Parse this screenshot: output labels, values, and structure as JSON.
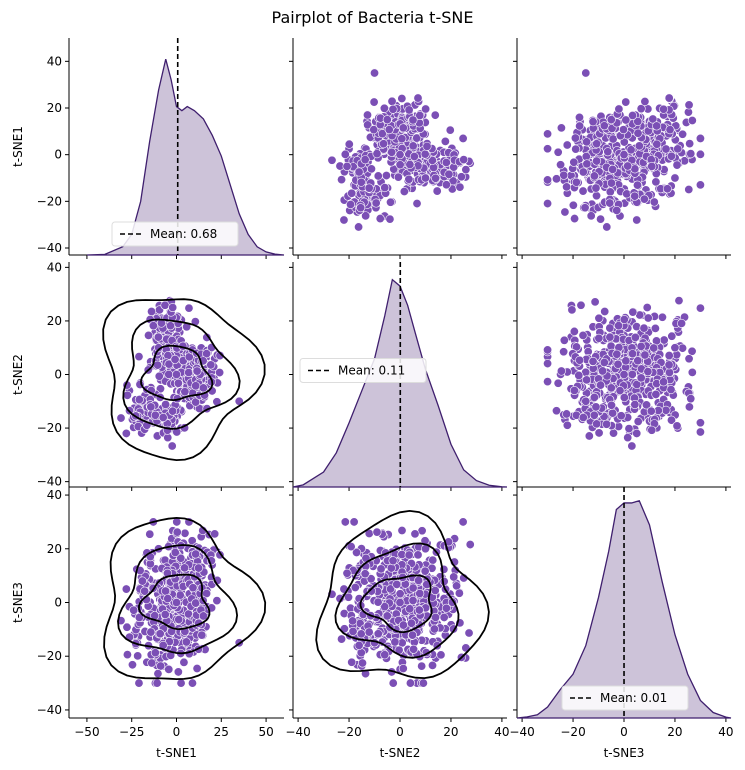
{
  "chart_data": {
    "type": "pairplot",
    "title": "Pairplot of Bacteria t-SNE",
    "variables": [
      "t-SNE1",
      "t-SNE2",
      "t-SNE3"
    ],
    "point_color": "#7b4fb5",
    "kde_fill_color": "#cdc3d9",
    "kde_line_color": "#3f1f6e",
    "contour_color": "#000000",
    "axes": {
      "t-SNE1": {
        "lim": [
          -60,
          60
        ],
        "ticks": [
          -50,
          -25,
          0,
          25,
          50
        ]
      },
      "t-SNE2": {
        "lim": [
          -42,
          42
        ],
        "ticks": [
          -40,
          -20,
          0,
          20,
          40
        ]
      },
      "t-SNE3": {
        "lim": [
          -42,
          42
        ],
        "ticks": [
          -40,
          -20,
          0,
          20,
          40
        ]
      }
    },
    "y_axis_ranges": {
      "t-SNE1": {
        "lim": [
          -43,
          50
        ],
        "ticks": [
          -40,
          -20,
          0,
          20,
          40
        ]
      },
      "t-SNE2": {
        "lim": [
          -42,
          42
        ],
        "ticks": [
          -40,
          -20,
          0,
          20,
          40
        ]
      },
      "t-SNE3": {
        "lim": [
          -43,
          43
        ],
        "ticks": [
          -40,
          -20,
          0,
          20,
          40
        ]
      }
    },
    "diagonal": [
      {
        "variable": "t-SNE1",
        "mean": 0.68,
        "legend": "Mean: 0.68",
        "legend_loc": "lower center",
        "kde_x": [
          -50,
          -40,
          -30,
          -25,
          -20,
          -15,
          -10,
          -6,
          -3,
          0,
          3,
          6,
          10,
          15,
          20,
          25,
          30,
          35,
          40,
          45,
          50,
          55,
          60
        ],
        "kde_y": [
          0.0,
          0.003,
          0.04,
          0.1,
          0.26,
          0.55,
          0.8,
          0.95,
          0.85,
          0.72,
          0.7,
          0.72,
          0.7,
          0.66,
          0.58,
          0.48,
          0.34,
          0.2,
          0.1,
          0.04,
          0.015,
          0.004,
          0.0
        ]
      },
      {
        "variable": "t-SNE2",
        "mean": 0.11,
        "legend": "Mean: 0.11",
        "legend_loc": "center left",
        "kde_x": [
          -42,
          -38,
          -34,
          -30,
          -25,
          -20,
          -15,
          -10,
          -6,
          -3,
          0,
          3,
          6,
          10,
          15,
          20,
          25,
          30,
          35,
          40,
          42
        ],
        "kde_y": [
          0.0,
          0.01,
          0.04,
          0.07,
          0.16,
          0.3,
          0.45,
          0.6,
          0.8,
          0.97,
          0.94,
          0.85,
          0.72,
          0.55,
          0.38,
          0.2,
          0.08,
          0.03,
          0.008,
          0.001,
          0.0
        ]
      },
      {
        "variable": "t-SNE3",
        "mean": 0.01,
        "legend": "Mean: 0.01",
        "legend_loc": "lower right",
        "kde_x": [
          -42,
          -38,
          -34,
          -30,
          -25,
          -20,
          -15,
          -10,
          -6,
          -3,
          0,
          3,
          6,
          10,
          15,
          20,
          25,
          30,
          35,
          40,
          42
        ],
        "kde_y": [
          0.0,
          0.005,
          0.015,
          0.05,
          0.13,
          0.2,
          0.33,
          0.55,
          0.76,
          0.95,
          0.98,
          0.98,
          0.99,
          0.88,
          0.62,
          0.38,
          0.2,
          0.08,
          0.025,
          0.004,
          0.0
        ]
      }
    ],
    "scatter_clusters": [
      {
        "center": [
          -8,
          28
        ],
        "spread": [
          10,
          8
        ],
        "n": 90
      },
      {
        "center": [
          -2,
          10
        ],
        "spread": [
          12,
          8
        ],
        "n": 140
      },
      {
        "center": [
          14,
          -6
        ],
        "spread": [
          12,
          8
        ],
        "n": 140
      },
      {
        "center": [
          -28,
          -22
        ],
        "spread": [
          8,
          5
        ],
        "n": 60
      },
      {
        "center": [
          -8,
          -26
        ],
        "spread": [
          8,
          6
        ],
        "n": 60
      },
      {
        "center": [
          22,
          8
        ],
        "spread": [
          6,
          6
        ],
        "n": 40
      }
    ],
    "scatter_samples": [
      {
        "t-SNE1": -10,
        "t-SNE2": 10,
        "t-SNE3": 20
      },
      {
        "t-SNE1": 0,
        "t-SNE2": 0,
        "t-SNE3": 0
      },
      {
        "t-SNE1": 15,
        "t-SNE2": -5,
        "t-SNE3": -5
      },
      {
        "t-SNE1": -28,
        "t-SNE2": -22,
        "t-SNE3": 5
      },
      {
        "t-SNE1": 35,
        "t-SNE2": -10,
        "t-SNE3": -15
      }
    ]
  }
}
